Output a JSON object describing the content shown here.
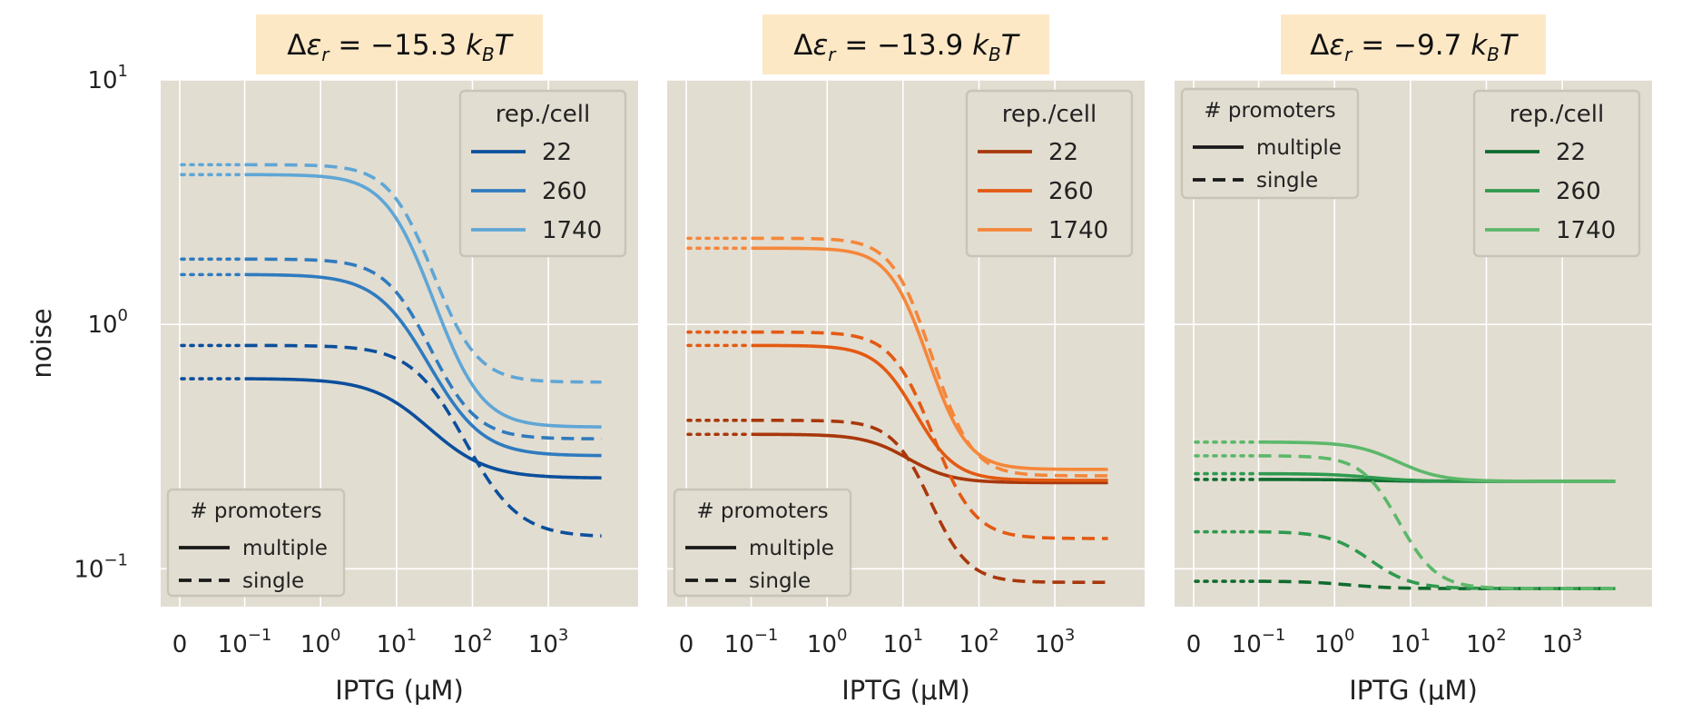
{
  "figure": {
    "ylabel": "noise"
  },
  "chart_data": [
    {
      "type": "line",
      "title": "Δε_r = −15.3 k_BT",
      "title_parts": {
        "pre": "Δ",
        "eps": "ε",
        "sub": "r",
        "eq": " = −15.3 ",
        "k": "k",
        "ksub": "B",
        "T": "T"
      },
      "xlabel": "IPTG (μM)",
      "ylabel": "noise",
      "yscale": "log",
      "xscale": "symlog",
      "ylim": [
        0.07,
        10
      ],
      "y_ticks": [
        {
          "base": "10",
          "exp": "−1",
          "v": 0.1
        },
        {
          "base": "10",
          "exp": "0",
          "v": 1
        },
        {
          "base": "10",
          "exp": "1",
          "v": 10
        }
      ],
      "x_ticks": [
        {
          "base": "0",
          "exp": "",
          "v": 0
        },
        {
          "base": "10",
          "exp": "−1",
          "v": 0.1
        },
        {
          "base": "10",
          "exp": "0",
          "v": 1
        },
        {
          "base": "10",
          "exp": "1",
          "v": 10
        },
        {
          "base": "10",
          "exp": "2",
          "v": 100
        },
        {
          "base": "10",
          "exp": "3",
          "v": 1000
        }
      ],
      "grid": true,
      "legend_rep": {
        "title": "rep./cell",
        "placement": "top-right",
        "entries": [
          "22",
          "260",
          "1740"
        ]
      },
      "legend_prom": {
        "title": "# promoters",
        "placement": "bottom-left",
        "entries": [
          "multiple",
          "single"
        ]
      },
      "series": [
        {
          "name": "22",
          "promoters": "multiple",
          "color": "#0b4f9c",
          "baseline": 0.6,
          "end": 0.235,
          "ec50": 18,
          "n": 1.15
        },
        {
          "name": "260",
          "promoters": "multiple",
          "color": "#2f7bbf",
          "baseline": 1.6,
          "end": 0.29,
          "ec50": 14,
          "n": 1.3
        },
        {
          "name": "1740",
          "promoters": "multiple",
          "color": "#5fa6d6",
          "baseline": 4.1,
          "end": 0.38,
          "ec50": 14,
          "n": 1.5
        },
        {
          "name": "22",
          "promoters": "single",
          "color": "#0b4f9c",
          "baseline": 0.82,
          "end": 0.135,
          "ec50": 40,
          "n": 1.3
        },
        {
          "name": "260",
          "promoters": "single",
          "color": "#2f7bbf",
          "baseline": 1.85,
          "end": 0.34,
          "ec50": 16,
          "n": 1.5
        },
        {
          "name": "1740",
          "promoters": "single",
          "color": "#5fa6d6",
          "baseline": 4.5,
          "end": 0.58,
          "ec50": 16,
          "n": 1.6
        }
      ]
    },
    {
      "type": "line",
      "title": "Δε_r = −13.9 k_BT",
      "title_parts": {
        "pre": "Δ",
        "eps": "ε",
        "sub": "r",
        "eq": " = −13.9 ",
        "k": "k",
        "ksub": "B",
        "T": "T"
      },
      "xlabel": "IPTG (μM)",
      "yscale": "log",
      "xscale": "symlog",
      "ylim": [
        0.07,
        10
      ],
      "x_ticks": [
        {
          "base": "0",
          "exp": "",
          "v": 0
        },
        {
          "base": "10",
          "exp": "−1",
          "v": 0.1
        },
        {
          "base": "10",
          "exp": "0",
          "v": 1
        },
        {
          "base": "10",
          "exp": "1",
          "v": 10
        },
        {
          "base": "10",
          "exp": "2",
          "v": 100
        },
        {
          "base": "10",
          "exp": "3",
          "v": 1000
        }
      ],
      "grid": true,
      "legend_rep": {
        "title": "rep./cell",
        "placement": "top-right",
        "entries": [
          "22",
          "260",
          "1740"
        ]
      },
      "legend_prom": {
        "title": "# promoters",
        "placement": "bottom-left",
        "entries": [
          "multiple",
          "single"
        ]
      },
      "series": [
        {
          "name": "22",
          "promoters": "multiple",
          "color": "#a8380c",
          "baseline": 0.355,
          "end": 0.225,
          "ec50": 10,
          "n": 1.5
        },
        {
          "name": "260",
          "promoters": "multiple",
          "color": "#e35a12",
          "baseline": 0.82,
          "end": 0.23,
          "ec50": 10,
          "n": 1.7
        },
        {
          "name": "1740",
          "promoters": "multiple",
          "color": "#f5873a",
          "baseline": 2.05,
          "end": 0.255,
          "ec50": 12,
          "n": 1.8
        },
        {
          "name": "22",
          "promoters": "single",
          "color": "#a8380c",
          "baseline": 0.405,
          "end": 0.088,
          "ec50": 15,
          "n": 1.8
        },
        {
          "name": "260",
          "promoters": "single",
          "color": "#e35a12",
          "baseline": 0.93,
          "end": 0.133,
          "ec50": 14,
          "n": 1.7
        },
        {
          "name": "1740",
          "promoters": "single",
          "color": "#f5873a",
          "baseline": 2.25,
          "end": 0.24,
          "ec50": 13,
          "n": 1.8
        }
      ]
    },
    {
      "type": "line",
      "title": "Δε_r = −9.7 k_BT",
      "title_parts": {
        "pre": "Δ",
        "eps": "ε",
        "sub": "r",
        "eq": " = −9.7 ",
        "k": "k",
        "ksub": "B",
        "T": "T"
      },
      "xlabel": "IPTG (μM)",
      "yscale": "log",
      "xscale": "symlog",
      "ylim": [
        0.07,
        10
      ],
      "x_ticks": [
        {
          "base": "0",
          "exp": "",
          "v": 0
        },
        {
          "base": "10",
          "exp": "−1",
          "v": 0.1
        },
        {
          "base": "10",
          "exp": "0",
          "v": 1
        },
        {
          "base": "10",
          "exp": "1",
          "v": 10
        },
        {
          "base": "10",
          "exp": "2",
          "v": 100
        },
        {
          "base": "10",
          "exp": "3",
          "v": 1000
        }
      ],
      "grid": true,
      "legend_rep": {
        "title": "rep./cell",
        "placement": "top-right",
        "entries": [
          "22",
          "260",
          "1740"
        ]
      },
      "legend_prom": {
        "title": "# promoters",
        "placement": "top-left",
        "entries": [
          "multiple",
          "single"
        ]
      },
      "series": [
        {
          "name": "22",
          "promoters": "multiple",
          "color": "#0f6b2e",
          "baseline": 0.232,
          "end": 0.228,
          "ec50": 3,
          "n": 1.5
        },
        {
          "name": "260",
          "promoters": "multiple",
          "color": "#2f9a4f",
          "baseline": 0.245,
          "end": 0.228,
          "ec50": 3,
          "n": 1.5
        },
        {
          "name": "1740",
          "promoters": "multiple",
          "color": "#5cb86a",
          "baseline": 0.33,
          "end": 0.228,
          "ec50": 6,
          "n": 1.5
        },
        {
          "name": "22",
          "promoters": "single",
          "color": "#0f6b2e",
          "baseline": 0.089,
          "end": 0.083,
          "ec50": 1.5,
          "n": 1.5
        },
        {
          "name": "260",
          "promoters": "single",
          "color": "#2f9a4f",
          "baseline": 0.142,
          "end": 0.083,
          "ec50": 2.5,
          "n": 1.6
        },
        {
          "name": "1740",
          "promoters": "single",
          "color": "#5cb86a",
          "baseline": 0.29,
          "end": 0.083,
          "ec50": 5,
          "n": 1.8
        }
      ]
    }
  ],
  "colors": {
    "panel_bg": "#e2ddd1",
    "title_bg": "#fde8c6",
    "grid": "#ffffff",
    "legend_bg": "#e2ddd1",
    "legend_border": "#c9c4b8"
  }
}
